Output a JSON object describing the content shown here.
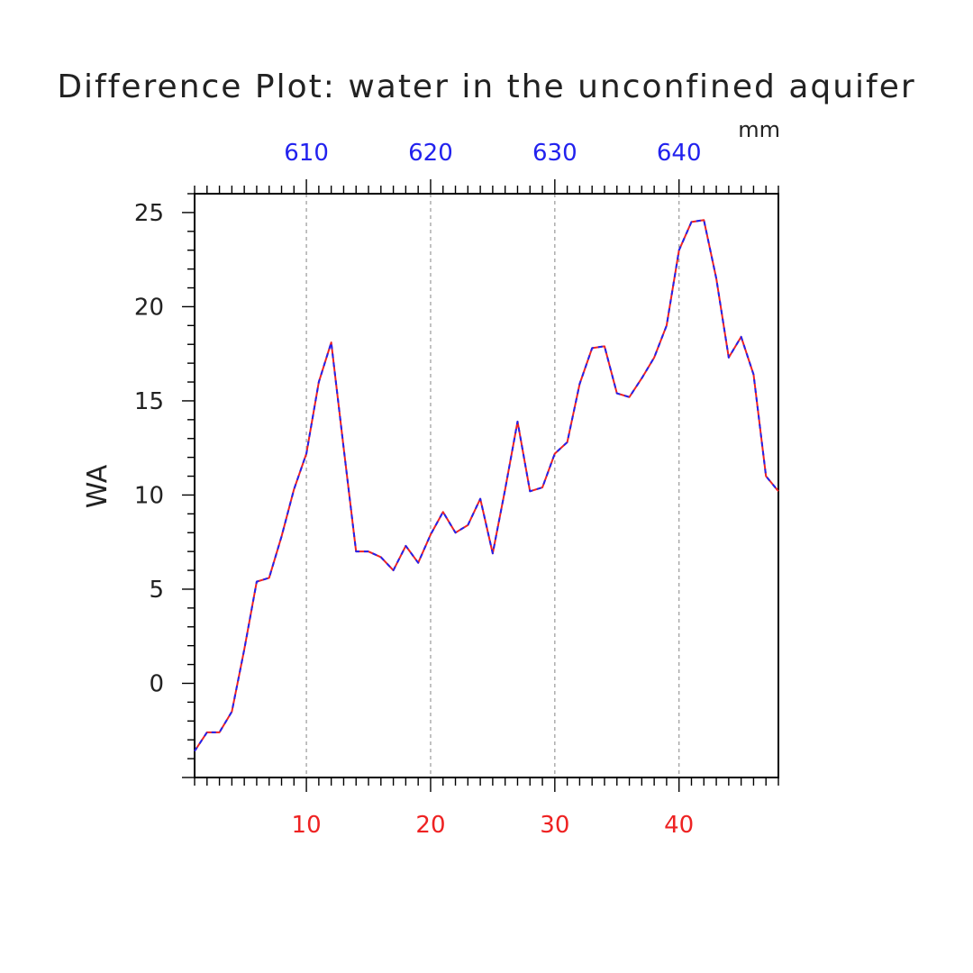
{
  "chart_data": {
    "type": "line",
    "title": "Difference Plot: water in the unconfined aquifer",
    "unit_label": "mm",
    "ylabel": "WA",
    "xlim": [
      1,
      48
    ],
    "ylim": [
      -5,
      26
    ],
    "grid": "vertical dashed at major x ticks",
    "x_bottom_ticks": [
      10,
      20,
      30,
      40
    ],
    "x_top_offset": 600,
    "x_top_ticks": [
      "610",
      "620",
      "630",
      "640"
    ],
    "y_ticks": [
      0,
      5,
      10,
      15,
      20,
      25
    ],
    "colors": {
      "line_primary": "#ee2222",
      "line_dash": "#2222ee",
      "top_ticks": "#2222ee",
      "bottom_ticks": "#ee2222"
    },
    "x": [
      1,
      2,
      3,
      4,
      5,
      6,
      7,
      8,
      9,
      10,
      11,
      12,
      13,
      14,
      15,
      16,
      17,
      18,
      19,
      20,
      21,
      22,
      23,
      24,
      25,
      26,
      27,
      28,
      29,
      30,
      31,
      32,
      33,
      34,
      35,
      36,
      37,
      38,
      39,
      40,
      41,
      42,
      43,
      44,
      45,
      46,
      47,
      48
    ],
    "series": [
      {
        "values": [
          -3.6,
          -2.6,
          -2.6,
          -1.5,
          1.8,
          5.4,
          5.6,
          7.8,
          10.3,
          12.2,
          16.0,
          18.1,
          12.5,
          7.0,
          7.0,
          6.7,
          6.0,
          7.3,
          6.4,
          7.9,
          9.1,
          8.0,
          8.4,
          9.8,
          6.9,
          10.3,
          13.9,
          10.2,
          10.4,
          12.2,
          12.8,
          15.9,
          17.8,
          17.9,
          15.4,
          15.2,
          16.2,
          17.3,
          19.0,
          23.0,
          24.5,
          24.6,
          21.5,
          17.3,
          18.4,
          16.4,
          11.0,
          10.2
        ]
      }
    ]
  }
}
